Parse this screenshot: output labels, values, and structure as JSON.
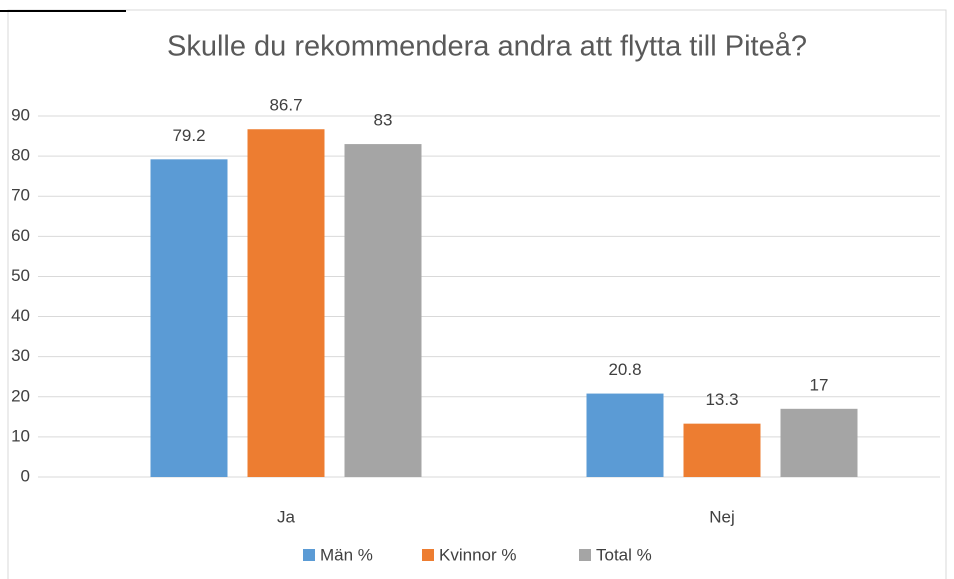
{
  "chart_data": {
    "type": "bar",
    "title": "Skulle du rekommendera andra att flytta till Piteå?",
    "categories": [
      "Ja",
      "Nej"
    ],
    "series": [
      {
        "name": "Män %",
        "color": "#5b9bd5",
        "values": [
          79.2,
          20.8
        ]
      },
      {
        "name": "Kvinnor %",
        "color": "#ed7d31",
        "values": [
          86.7,
          13.3
        ]
      },
      {
        "name": "Total %",
        "color": "#a5a5a5",
        "values": [
          83,
          17
        ]
      }
    ],
    "ylim": [
      0,
      90
    ],
    "yticks": [
      0,
      10,
      20,
      30,
      40,
      50,
      60,
      70,
      80,
      90
    ],
    "grid": true,
    "legend": "bottom"
  }
}
